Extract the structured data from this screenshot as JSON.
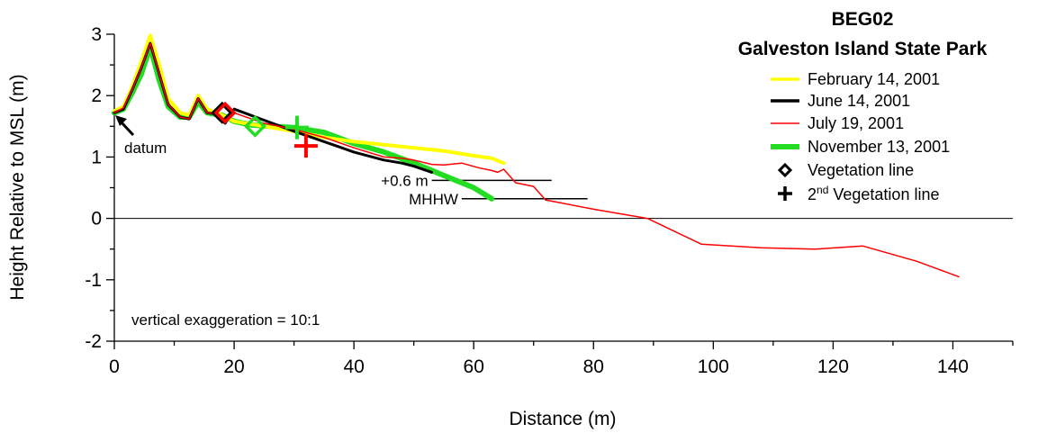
{
  "chart_data": {
    "type": "line",
    "title": "BEG02",
    "subtitle": "Galveston Island State Park",
    "xlabel": "Distance (m)",
    "ylabel": "Height Relative to MSL (m)",
    "xlim": [
      0,
      150
    ],
    "ylim": [
      -2,
      3
    ],
    "xticks": [
      0,
      20,
      40,
      60,
      80,
      100,
      120,
      140
    ],
    "yticks": [
      -2,
      -1,
      0,
      1,
      2,
      3
    ],
    "legend_position": "top-right",
    "grid": false,
    "series": [
      {
        "name": "February 14, 2001",
        "color": "#ffff00",
        "x": [
          0,
          1.5,
          3,
          4.5,
          6,
          7.5,
          9,
          11,
          12.5,
          14,
          15.5,
          18,
          20,
          25,
          30,
          35,
          40,
          45,
          50,
          55,
          60,
          63,
          65
        ],
        "y": [
          1.75,
          1.82,
          2.15,
          2.55,
          2.98,
          2.5,
          1.95,
          1.72,
          1.68,
          2.0,
          1.78,
          1.68,
          1.58,
          1.5,
          1.42,
          1.32,
          1.25,
          1.2,
          1.15,
          1.1,
          1.02,
          0.98,
          0.9
        ]
      },
      {
        "name": "June 14, 2001",
        "color": "#000000",
        "x": [
          0,
          1.5,
          3,
          4.5,
          6,
          7.5,
          9,
          11,
          12.5,
          14,
          15.5,
          17,
          18.5,
          20,
          25,
          30,
          35,
          40,
          45,
          48,
          50,
          53
        ],
        "y": [
          1.72,
          1.78,
          2.1,
          2.45,
          2.85,
          2.35,
          1.85,
          1.65,
          1.62,
          1.95,
          1.72,
          1.7,
          1.55,
          1.78,
          1.6,
          1.42,
          1.25,
          1.08,
          0.95,
          0.9,
          0.85,
          0.75
        ]
      },
      {
        "name": "July 19, 2001",
        "color": "#ff0000",
        "x": [
          0,
          1.5,
          3,
          4.5,
          6,
          7.5,
          9,
          11,
          12.5,
          14,
          15.5,
          17,
          18.5,
          20,
          22,
          25,
          30,
          35,
          40,
          45,
          48,
          50,
          53,
          55,
          58,
          61,
          63,
          64,
          65,
          67,
          70,
          72,
          80,
          89,
          98,
          108,
          117,
          125,
          134,
          141
        ],
        "y": [
          1.72,
          1.8,
          2.1,
          2.45,
          2.85,
          2.35,
          1.85,
          1.65,
          1.62,
          1.95,
          1.72,
          1.7,
          1.6,
          1.72,
          1.65,
          1.55,
          1.45,
          1.32,
          1.15,
          1.0,
          0.98,
          0.95,
          0.88,
          0.87,
          0.9,
          0.82,
          0.78,
          0.75,
          0.8,
          0.58,
          0.52,
          0.3,
          0.15,
          0.0,
          -0.42,
          -0.48,
          -0.5,
          -0.45,
          -0.7,
          -0.95
        ]
      },
      {
        "name": "November 13, 2001",
        "color": "#22dd22",
        "x": [
          0,
          1.5,
          3,
          4.5,
          6,
          7.5,
          9,
          11,
          12.5,
          14,
          15.5,
          18,
          20,
          23,
          26,
          30,
          35,
          40,
          45,
          50,
          55,
          60,
          63
        ],
        "y": [
          1.72,
          1.78,
          2.05,
          2.35,
          2.8,
          2.25,
          1.82,
          1.65,
          1.65,
          1.9,
          1.72,
          1.68,
          1.58,
          1.52,
          1.5,
          1.48,
          1.4,
          1.22,
          1.08,
          0.9,
          0.7,
          0.5,
          0.32
        ]
      }
    ],
    "markers": [
      {
        "type": "vegetation-line",
        "x": 18,
        "y": 1.72,
        "color": "#000000"
      },
      {
        "type": "vegetation-line",
        "x": 18.5,
        "y": 1.72,
        "color": "#ff0000"
      },
      {
        "type": "vegetation-line",
        "x": 23.5,
        "y": 1.5,
        "color": "#22dd22"
      },
      {
        "type": "2nd-vegetation-line",
        "x": 30.5,
        "y": 1.48,
        "color": "#22dd22"
      },
      {
        "type": "2nd-vegetation-line",
        "x": 32,
        "y": 1.18,
        "color": "#ff0000"
      }
    ],
    "reference_lines": [
      {
        "label": "+0.6 m",
        "y": 0.62,
        "x_start": 53,
        "x_end": 73
      },
      {
        "label": "MHHW",
        "y": 0.32,
        "x_start": 58,
        "x_end": 79
      }
    ],
    "legend_symbols": [
      {
        "label": "Vegetation line",
        "symbol": "diamond"
      },
      {
        "label": "2nd Vegetation line",
        "label_prefix": "2",
        "label_sup": "nd",
        "label_rest": " Vegetation line",
        "symbol": "plus"
      }
    ],
    "annotations": {
      "datum": "datum",
      "exaggeration": "vertical exaggeration = 10:1"
    }
  }
}
